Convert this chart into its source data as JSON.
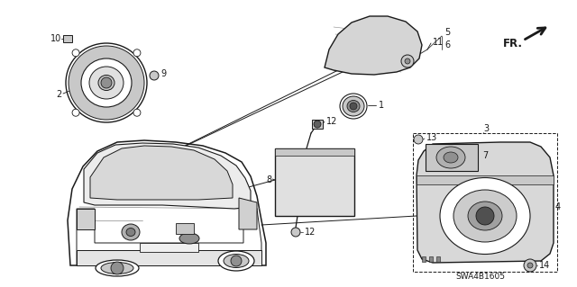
{
  "bg_color": "#ffffff",
  "diagram_code": "SWA4B1605",
  "figsize": [
    6.4,
    3.19
  ],
  "dpi": 100,
  "line_color": "#1a1a1a",
  "gray_light": "#c8c8c8",
  "gray_mid": "#909090",
  "gray_dark": "#505050",
  "label_fs": 7.0
}
